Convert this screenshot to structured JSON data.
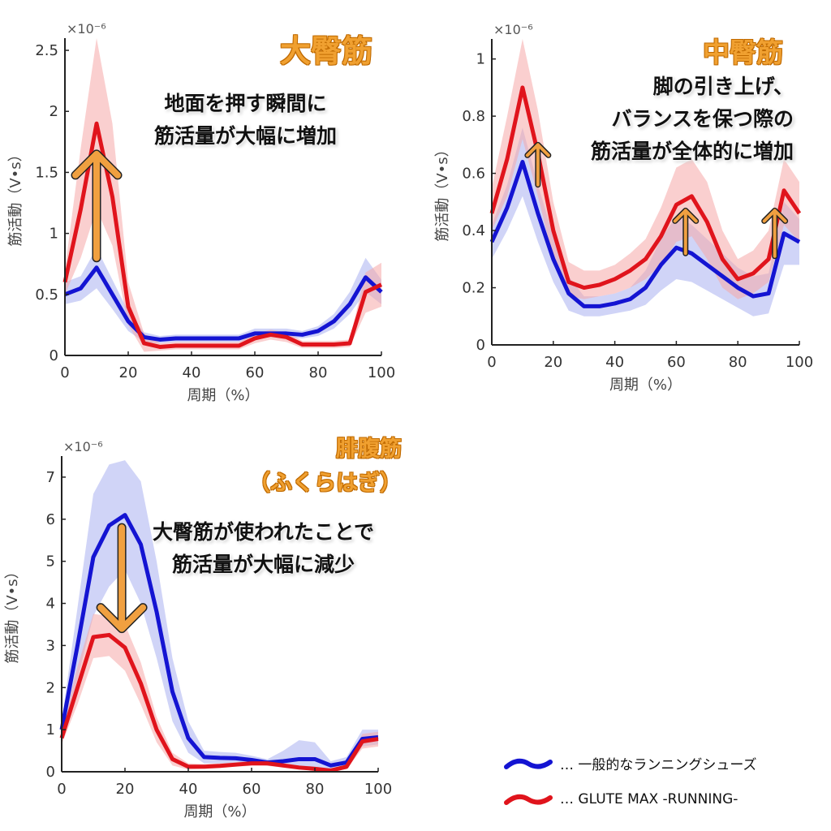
{
  "chart_data": [
    {
      "type": "line",
      "title": "大臀筋",
      "annotation": "地面を押す瞬間に\n筋活量が大幅に増加",
      "xlabel": "周期（%）",
      "ylabel": "筋活動（V•s）",
      "y_exponent_label": "×10⁻⁶",
      "xlim": [
        0,
        100
      ],
      "ylim": [
        0,
        2.6
      ],
      "xticks": [
        "0",
        "20",
        "40",
        "60",
        "80",
        "100"
      ],
      "yticks": [
        "0",
        "0.5",
        "1",
        "1.5",
        "2",
        "2.5"
      ],
      "x": [
        0,
        5,
        10,
        15,
        20,
        25,
        30,
        35,
        40,
        45,
        50,
        55,
        60,
        65,
        70,
        75,
        80,
        85,
        90,
        95,
        100
      ],
      "series": [
        {
          "color": "#1414d2",
          "band_color": "#aab0f0",
          "values": [
            0.5,
            0.55,
            0.72,
            0.5,
            0.28,
            0.15,
            0.13,
            0.14,
            0.14,
            0.14,
            0.14,
            0.14,
            0.18,
            0.18,
            0.18,
            0.17,
            0.2,
            0.28,
            0.42,
            0.64,
            0.52
          ],
          "lower": [
            0.42,
            0.45,
            0.55,
            0.38,
            0.2,
            0.11,
            0.1,
            0.11,
            0.11,
            0.11,
            0.11,
            0.11,
            0.14,
            0.15,
            0.15,
            0.14,
            0.16,
            0.22,
            0.34,
            0.52,
            0.42
          ],
          "upper": [
            0.6,
            0.65,
            0.88,
            0.62,
            0.36,
            0.19,
            0.16,
            0.17,
            0.17,
            0.17,
            0.17,
            0.17,
            0.22,
            0.22,
            0.22,
            0.2,
            0.24,
            0.34,
            0.52,
            0.8,
            0.62
          ]
        },
        {
          "color": "#e0141c",
          "band_color": "#f5a8a8",
          "values": [
            0.6,
            1.2,
            1.9,
            1.3,
            0.4,
            0.1,
            0.07,
            0.08,
            0.08,
            0.08,
            0.08,
            0.08,
            0.14,
            0.17,
            0.15,
            0.09,
            0.09,
            0.09,
            0.1,
            0.52,
            0.58
          ],
          "lower": [
            0.5,
            0.8,
            1.2,
            0.9,
            0.25,
            0.03,
            0.04,
            0.05,
            0.05,
            0.05,
            0.05,
            0.05,
            0.1,
            0.13,
            0.11,
            0.06,
            0.06,
            0.06,
            0.07,
            0.35,
            0.4
          ],
          "upper": [
            0.7,
            1.7,
            2.6,
            1.9,
            0.6,
            0.18,
            0.1,
            0.11,
            0.11,
            0.11,
            0.11,
            0.11,
            0.18,
            0.21,
            0.19,
            0.12,
            0.12,
            0.12,
            0.13,
            0.68,
            0.76
          ]
        }
      ],
      "arrows": [
        {
          "x": 10,
          "from": 0.8,
          "to": 1.65,
          "size": "large"
        }
      ]
    },
    {
      "type": "line",
      "title": "中臀筋",
      "annotation": "脚の引き上げ、\nバランスを保つ際の\n筋活量が全体的に増加",
      "xlabel": "周期（%）",
      "ylabel": "筋活動（V•s）",
      "y_exponent_label": "×10⁻⁶",
      "xlim": [
        0,
        100
      ],
      "ylim": [
        0,
        1.07
      ],
      "xticks": [
        "0",
        "20",
        "40",
        "60",
        "80",
        "100"
      ],
      "yticks": [
        "0",
        "0.2",
        "0.4",
        "0.6",
        "0.8",
        "1"
      ],
      "x": [
        0,
        5,
        10,
        15,
        20,
        25,
        30,
        35,
        40,
        45,
        50,
        55,
        60,
        65,
        70,
        75,
        80,
        85,
        90,
        95,
        100
      ],
      "series": [
        {
          "color": "#1414d2",
          "band_color": "#aab0f0",
          "values": [
            0.36,
            0.48,
            0.64,
            0.46,
            0.3,
            0.18,
            0.135,
            0.135,
            0.145,
            0.16,
            0.2,
            0.28,
            0.34,
            0.32,
            0.28,
            0.24,
            0.2,
            0.17,
            0.18,
            0.39,
            0.36
          ],
          "lower": [
            0.3,
            0.4,
            0.52,
            0.36,
            0.22,
            0.12,
            0.1,
            0.1,
            0.11,
            0.12,
            0.14,
            0.19,
            0.23,
            0.22,
            0.19,
            0.16,
            0.13,
            0.1,
            0.11,
            0.28,
            0.28
          ],
          "upper": [
            0.42,
            0.56,
            0.76,
            0.56,
            0.38,
            0.24,
            0.17,
            0.17,
            0.18,
            0.2,
            0.26,
            0.37,
            0.45,
            0.42,
            0.37,
            0.32,
            0.27,
            0.24,
            0.25,
            0.5,
            0.44
          ]
        },
        {
          "color": "#e0141c",
          "band_color": "#f5a8a8",
          "values": [
            0.46,
            0.65,
            0.9,
            0.67,
            0.4,
            0.22,
            0.2,
            0.21,
            0.23,
            0.26,
            0.3,
            0.38,
            0.49,
            0.52,
            0.43,
            0.3,
            0.23,
            0.25,
            0.3,
            0.54,
            0.46
          ],
          "lower": [
            0.4,
            0.52,
            0.72,
            0.52,
            0.3,
            0.17,
            0.16,
            0.17,
            0.18,
            0.2,
            0.23,
            0.28,
            0.36,
            0.38,
            0.3,
            0.2,
            0.16,
            0.18,
            0.22,
            0.42,
            0.36
          ],
          "upper": [
            0.55,
            0.8,
            1.07,
            0.82,
            0.5,
            0.29,
            0.26,
            0.26,
            0.28,
            0.32,
            0.37,
            0.48,
            0.62,
            0.65,
            0.57,
            0.4,
            0.3,
            0.33,
            0.4,
            0.65,
            0.57
          ]
        }
      ],
      "arrows": [
        {
          "x": 15,
          "from": 0.56,
          "to": 0.7,
          "size": "small"
        },
        {
          "x": 63,
          "from": 0.32,
          "to": 0.47,
          "size": "small"
        },
        {
          "x": 92,
          "from": 0.31,
          "to": 0.47,
          "size": "small"
        }
      ]
    },
    {
      "type": "line",
      "title": "腓腹筋\n（ふくらはぎ）",
      "annotation": "大臀筋が使われたことで\n筋活量が大幅に減少",
      "xlabel": "周期（%）",
      "ylabel": "筋活動（V•s）",
      "y_exponent_label": "×10⁻⁶",
      "xlim": [
        0,
        100
      ],
      "ylim": [
        0,
        7.5
      ],
      "xticks": [
        "0",
        "20",
        "40",
        "60",
        "80",
        "100"
      ],
      "yticks": [
        "0",
        "1",
        "2",
        "3",
        "4",
        "5",
        "6",
        "7"
      ],
      "x": [
        0,
        5,
        10,
        15,
        20,
        25,
        30,
        35,
        40,
        45,
        50,
        55,
        60,
        65,
        70,
        75,
        80,
        85,
        90,
        95,
        100
      ],
      "series": [
        {
          "color": "#1414d2",
          "band_color": "#aab0f0",
          "values": [
            1.0,
            3.0,
            5.1,
            5.85,
            6.1,
            5.4,
            3.8,
            1.9,
            0.8,
            0.35,
            0.33,
            0.32,
            0.28,
            0.22,
            0.25,
            0.3,
            0.3,
            0.15,
            0.22,
            0.78,
            0.82
          ],
          "lower": [
            0.8,
            2.2,
            3.7,
            4.4,
            4.8,
            4.0,
            2.7,
            1.2,
            0.45,
            0.2,
            0.2,
            0.2,
            0.18,
            0.14,
            0.12,
            0.1,
            0.1,
            0.05,
            0.1,
            0.6,
            0.65
          ],
          "upper": [
            1.2,
            3.9,
            6.6,
            7.3,
            7.4,
            6.9,
            5.0,
            2.7,
            1.2,
            0.5,
            0.47,
            0.45,
            0.38,
            0.3,
            0.5,
            0.75,
            0.7,
            0.25,
            0.35,
            1.0,
            1.0
          ]
        },
        {
          "color": "#e0141c",
          "band_color": "#f5a8a8",
          "values": [
            0.8,
            2.0,
            3.2,
            3.25,
            2.95,
            2.1,
            1.0,
            0.3,
            0.12,
            0.12,
            0.14,
            0.17,
            0.2,
            0.2,
            0.15,
            0.1,
            0.07,
            0.03,
            0.12,
            0.72,
            0.78
          ],
          "lower": [
            0.65,
            1.6,
            2.7,
            2.75,
            2.4,
            1.6,
            0.7,
            0.15,
            0.05,
            0.07,
            0.09,
            0.12,
            0.14,
            0.14,
            0.1,
            0.06,
            0.03,
            0.01,
            0.06,
            0.55,
            0.6
          ],
          "upper": [
            0.95,
            2.5,
            3.75,
            3.7,
            3.5,
            2.6,
            1.3,
            0.45,
            0.2,
            0.18,
            0.2,
            0.23,
            0.27,
            0.27,
            0.21,
            0.15,
            0.12,
            0.07,
            0.18,
            0.9,
            0.95
          ]
        }
      ],
      "arrows": [
        {
          "x": 19,
          "from": 5.8,
          "to": 3.4,
          "size": "large"
        }
      ]
    }
  ],
  "legend": {
    "placement": "bottom-right",
    "items": [
      {
        "label": "… 一般的なランニングシューズ",
        "color": "#1414d2"
      },
      {
        "label": "… GLUTE MAX -RUNNING-",
        "color": "#e0141c"
      }
    ]
  },
  "arrow_color": "#f0a040"
}
